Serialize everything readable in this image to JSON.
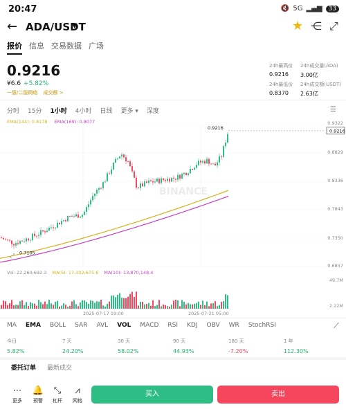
{
  "status": {
    "time": "20:47",
    "signal": "5G",
    "battery": "33"
  },
  "header": {
    "pair": "ADA/USDT",
    "caret": "▼"
  },
  "tabs": [
    "报价",
    "信息",
    "交易数据",
    "广场"
  ],
  "ticker": {
    "price": "0.9216",
    "cny": "¥6.6",
    "change": "+5.82%",
    "tags": "一层/二层网络",
    "tags2": "成交额 >"
  },
  "stats": {
    "high_label": "24h最高价",
    "high": "0.9216",
    "low_label": "24h最低价",
    "low": "0.8370",
    "vol_ada_label": "24h成交量(ADA)",
    "vol_ada": "3.00亿",
    "vol_usdt_label": "24h成交额(USDT)",
    "vol_usdt": "2.63亿"
  },
  "timeframes": [
    "分时",
    "15分",
    "1小时",
    "4小时",
    "日线",
    "更多 ▾",
    "深度"
  ],
  "ema_legend": {
    "ema144": "EMA(144): 0.8178",
    "ema169": "EMA(169): 0.8077"
  },
  "price_axis": [
    "0.9322",
    "0.8829",
    "0.8336",
    "0.7843",
    "0.7350",
    "0.6857"
  ],
  "current_price_label": "0.9216",
  "low_marker": "0.7105",
  "watermark": "BINANCE",
  "vol_legend": {
    "vol": "Vol: 22,260,692.3",
    "ma5": "MA(5): 17,302,675.6",
    "ma10": "MA(10): 13,870,148.4"
  },
  "vol_axis": {
    "top": "49.7M",
    "bottom": "2.22M"
  },
  "x_axis": [
    "2025-07-17 19:00",
    "2025-07-21 05:00"
  ],
  "indicators": [
    "MA",
    "EMA",
    "BOLL",
    "SAR",
    "AVL",
    "VOL",
    "MACD",
    "RSI",
    "KDJ",
    "OBV",
    "WR",
    "StochRSI"
  ],
  "performance": [
    {
      "label": "今日",
      "value": "5.82%",
      "color": "green"
    },
    {
      "label": "7 天",
      "value": "24.20%",
      "color": "green"
    },
    {
      "label": "30 天",
      "value": "58.02%",
      "color": "green"
    },
    {
      "label": "90 天",
      "value": "44.93%",
      "color": "green"
    },
    {
      "label": "180 天",
      "value": "-7.20%",
      "color": "red"
    },
    {
      "label": "1 年",
      "value": "112.30%",
      "color": "green"
    }
  ],
  "bottom_tabs": [
    "委托订单",
    "最新成交"
  ],
  "bottom_icons": [
    {
      "label": "更多",
      "icon": "more-icon"
    },
    {
      "label": "预警",
      "icon": "bell-icon"
    },
    {
      "label": "杠杆",
      "icon": "leverage-icon"
    },
    {
      "label": "网格",
      "icon": "grid-icon"
    }
  ],
  "buy_label": "买入",
  "sell_label": "卖出",
  "chart_data": {
    "type": "candlestick",
    "interval": "1小时",
    "y_range": [
      0.6857,
      0.9322
    ],
    "current_price": 0.9216,
    "low_point": 0.7105,
    "ema": [
      {
        "name": "EMA(144)",
        "value": 0.8178,
        "color": "#d4b21f"
      },
      {
        "name": "EMA(169)",
        "value": 0.8077,
        "color": "#c240c8"
      }
    ]
  }
}
